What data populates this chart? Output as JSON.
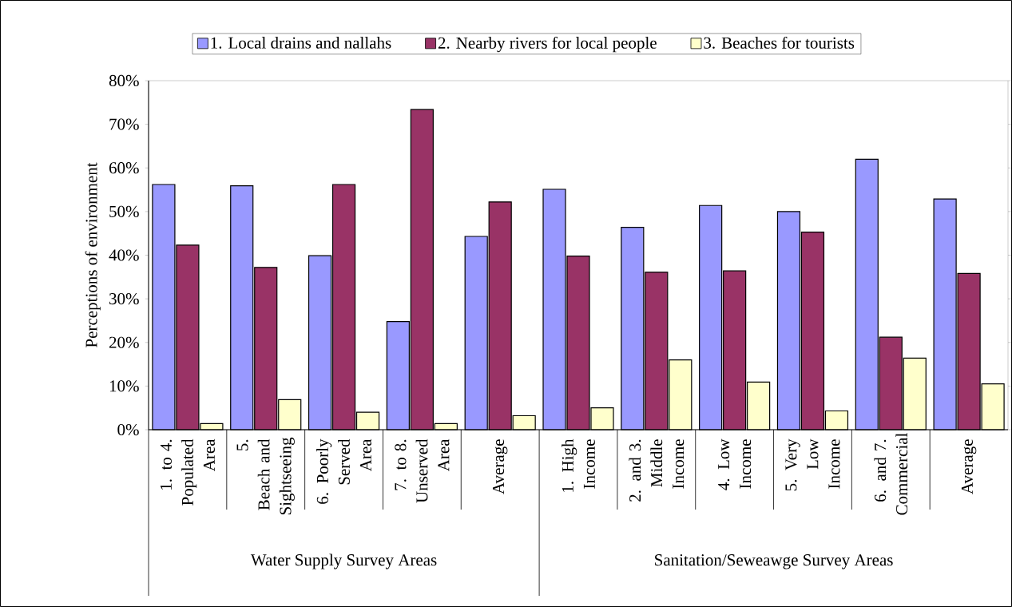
{
  "chart_data": {
    "type": "bar",
    "ylabel": "Perceptions of environment",
    "categories": [
      "1. to 4. Populated Area",
      "5. Beach and Sightseeing",
      "6. Poorly Served Area",
      "7. to 8. Unserved Area",
      "Average",
      "1. High Income",
      "2. and 3. Middle Income",
      "4. Low Income",
      "5. Very Low Income",
      "6. and 7. Commercial",
      "Average"
    ],
    "series": [
      {
        "name": "1. Local drains and nallahs",
        "color": "#9999ff",
        "values": [
          56.2,
          55.9,
          39.9,
          24.8,
          44.3,
          55.1,
          46.4,
          51.4,
          50.0,
          62.0,
          52.9
        ]
      },
      {
        "name": "2. Nearby rivers for local people",
        "color": "#993366",
        "values": [
          42.3,
          37.2,
          56.2,
          73.4,
          52.2,
          39.8,
          36.1,
          36.4,
          45.3,
          21.2,
          35.8
        ]
      },
      {
        "name": "3. Beaches for tourists",
        "color": "#ffffcc",
        "values": [
          1.4,
          6.9,
          4.0,
          1.4,
          3.2,
          5.0,
          16.0,
          10.9,
          4.3,
          16.4,
          10.5
        ]
      }
    ],
    "ylim": [
      0,
      80
    ],
    "yticks": [
      {
        "value": 0,
        "label": "0%"
      },
      {
        "value": 10,
        "label": "10%"
      },
      {
        "value": 20,
        "label": "20%"
      },
      {
        "value": 30,
        "label": "30%"
      },
      {
        "value": 40,
        "label": "40%"
      },
      {
        "value": 50,
        "label": "50%"
      },
      {
        "value": 60,
        "label": "60%"
      },
      {
        "value": 70,
        "label": "70%"
      },
      {
        "value": 80,
        "label": "80%"
      }
    ],
    "legend": "top",
    "grid": false,
    "annotations": [
      "Water Supply Survey Areas",
      "Sanitation/Seweawge Survey Areas"
    ]
  }
}
